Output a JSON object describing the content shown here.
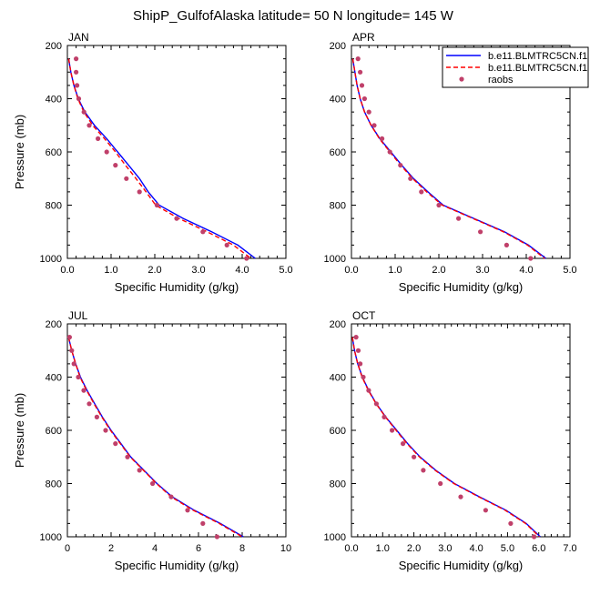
{
  "title": "ShipP_GulfofAlaska  latitude= 50 N longitude= 145 W",
  "legend": {
    "placement": "top-right",
    "entries": [
      {
        "label": "b.e11.BLMTRC5CN.f1",
        "color": "#0000ff",
        "style": "solid"
      },
      {
        "label": "b.e11.BLMTRC5CN.f1",
        "color": "#ff0000",
        "style": "dashed"
      },
      {
        "label": "raobs",
        "color": "#c0406a",
        "style": "marker"
      }
    ]
  },
  "colors": {
    "model_a": "#0000ff",
    "model_b": "#ff0000",
    "raobs": "#c0406a"
  },
  "chart_data": [
    {
      "type": "line",
      "panel": "JAN",
      "xlabel": "Specific Humidity (g/kg)",
      "ylabel": "Pressure (mb)",
      "xlim": [
        0,
        5
      ],
      "ylim": [
        200,
        1000
      ],
      "y_reversed": true,
      "xticks": [
        "0.0",
        "1.0",
        "2.0",
        "3.0",
        "4.0",
        "5.0"
      ],
      "yticks": [
        "200",
        "400",
        "600",
        "800",
        "1000"
      ],
      "series": [
        {
          "name": "b.e11.BLMTRC5CN.f1",
          "style": "solid",
          "points": [
            [
              0.03,
              250
            ],
            [
              0.08,
              300
            ],
            [
              0.15,
              350
            ],
            [
              0.25,
              400
            ],
            [
              0.4,
              450
            ],
            [
              0.62,
              500
            ],
            [
              0.9,
              550
            ],
            [
              1.15,
              600
            ],
            [
              1.4,
              650
            ],
            [
              1.65,
              700
            ],
            [
              1.85,
              750
            ],
            [
              2.1,
              800
            ],
            [
              2.65,
              850
            ],
            [
              3.3,
              900
            ],
            [
              3.9,
              950
            ],
            [
              4.3,
              1000
            ]
          ]
        },
        {
          "name": "b.e11.BLMTRC5CN.f1",
          "style": "dashed",
          "points": [
            [
              0.03,
              250
            ],
            [
              0.08,
              300
            ],
            [
              0.15,
              350
            ],
            [
              0.24,
              400
            ],
            [
              0.38,
              450
            ],
            [
              0.58,
              500
            ],
            [
              0.85,
              550
            ],
            [
              1.1,
              600
            ],
            [
              1.33,
              650
            ],
            [
              1.57,
              700
            ],
            [
              1.8,
              750
            ],
            [
              2.02,
              800
            ],
            [
              2.55,
              850
            ],
            [
              3.2,
              900
            ],
            [
              3.8,
              950
            ],
            [
              4.2,
              1000
            ]
          ]
        }
      ],
      "raobs": [
        [
          0.2,
          250
        ],
        [
          0.2,
          300
        ],
        [
          0.22,
          350
        ],
        [
          0.26,
          400
        ],
        [
          0.38,
          450
        ],
        [
          0.5,
          500
        ],
        [
          0.7,
          550
        ],
        [
          0.9,
          600
        ],
        [
          1.1,
          650
        ],
        [
          1.35,
          700
        ],
        [
          1.65,
          750
        ],
        [
          2.05,
          800
        ],
        [
          2.5,
          850
        ],
        [
          3.1,
          900
        ],
        [
          3.65,
          950
        ],
        [
          4.1,
          1000
        ]
      ]
    },
    {
      "type": "line",
      "panel": "APR",
      "xlabel": "Specific Humidity (g/kg)",
      "ylabel": "",
      "xlim": [
        0,
        5
      ],
      "ylim": [
        200,
        1000
      ],
      "y_reversed": true,
      "xticks": [
        "0.0",
        "1.0",
        "2.0",
        "3.0",
        "4.0",
        "5.0"
      ],
      "yticks": [
        "200",
        "400",
        "600",
        "800",
        "1000"
      ],
      "series": [
        {
          "name": "b.e11.BLMTRC5CN.f1",
          "style": "solid",
          "points": [
            [
              0.03,
              250
            ],
            [
              0.08,
              300
            ],
            [
              0.13,
              350
            ],
            [
              0.2,
              400
            ],
            [
              0.3,
              450
            ],
            [
              0.45,
              500
            ],
            [
              0.65,
              550
            ],
            [
              0.9,
              600
            ],
            [
              1.15,
              650
            ],
            [
              1.42,
              700
            ],
            [
              1.75,
              750
            ],
            [
              2.1,
              800
            ],
            [
              2.8,
              850
            ],
            [
              3.5,
              900
            ],
            [
              4.05,
              950
            ],
            [
              4.45,
              1000
            ]
          ]
        },
        {
          "name": "b.e11.BLMTRC5CN.f1",
          "style": "dashed",
          "points": [
            [
              0.03,
              250
            ],
            [
              0.08,
              300
            ],
            [
              0.13,
              350
            ],
            [
              0.2,
              400
            ],
            [
              0.3,
              450
            ],
            [
              0.45,
              500
            ],
            [
              0.64,
              550
            ],
            [
              0.88,
              600
            ],
            [
              1.13,
              650
            ],
            [
              1.4,
              700
            ],
            [
              1.72,
              750
            ],
            [
              2.08,
              800
            ],
            [
              2.78,
              850
            ],
            [
              3.48,
              900
            ],
            [
              4.03,
              950
            ],
            [
              4.42,
              1000
            ]
          ]
        }
      ],
      "raobs": [
        [
          0.15,
          250
        ],
        [
          0.2,
          300
        ],
        [
          0.24,
          350
        ],
        [
          0.3,
          400
        ],
        [
          0.4,
          450
        ],
        [
          0.52,
          500
        ],
        [
          0.7,
          550
        ],
        [
          0.88,
          600
        ],
        [
          1.12,
          650
        ],
        [
          1.35,
          700
        ],
        [
          1.6,
          750
        ],
        [
          2.0,
          800
        ],
        [
          2.45,
          850
        ],
        [
          2.95,
          900
        ],
        [
          3.55,
          950
        ],
        [
          4.1,
          1000
        ]
      ]
    },
    {
      "type": "line",
      "panel": "JUL",
      "xlabel": "Specific Humidity (g/kg)",
      "ylabel": "Pressure (mb)",
      "xlim": [
        0,
        10
      ],
      "ylim": [
        200,
        1000
      ],
      "y_reversed": true,
      "xticks": [
        "0",
        "2",
        "4",
        "6",
        "8",
        "10"
      ],
      "yticks": [
        "200",
        "400",
        "600",
        "800",
        "1000"
      ],
      "series": [
        {
          "name": "b.e11.BLMTRC5CN.f1",
          "style": "solid",
          "points": [
            [
              0.05,
              250
            ],
            [
              0.2,
              300
            ],
            [
              0.38,
              350
            ],
            [
              0.6,
              400
            ],
            [
              0.9,
              450
            ],
            [
              1.25,
              500
            ],
            [
              1.6,
              550
            ],
            [
              2.0,
              600
            ],
            [
              2.45,
              650
            ],
            [
              2.9,
              700
            ],
            [
              3.5,
              750
            ],
            [
              4.1,
              800
            ],
            [
              4.8,
              850
            ],
            [
              5.8,
              900
            ],
            [
              7.0,
              950
            ],
            [
              8.05,
              1000
            ]
          ]
        },
        {
          "name": "b.e11.BLMTRC5CN.f1",
          "style": "dashed",
          "points": [
            [
              0.05,
              250
            ],
            [
              0.2,
              300
            ],
            [
              0.38,
              350
            ],
            [
              0.58,
              400
            ],
            [
              0.88,
              450
            ],
            [
              1.22,
              500
            ],
            [
              1.58,
              550
            ],
            [
              1.97,
              600
            ],
            [
              2.42,
              650
            ],
            [
              2.88,
              700
            ],
            [
              3.48,
              750
            ],
            [
              4.08,
              800
            ],
            [
              4.75,
              850
            ],
            [
              5.75,
              900
            ],
            [
              6.95,
              950
            ],
            [
              8.0,
              1000
            ]
          ]
        }
      ],
      "raobs": [
        [
          0.1,
          250
        ],
        [
          0.2,
          300
        ],
        [
          0.3,
          350
        ],
        [
          0.5,
          400
        ],
        [
          0.75,
          450
        ],
        [
          1.0,
          500
        ],
        [
          1.35,
          550
        ],
        [
          1.75,
          600
        ],
        [
          2.2,
          650
        ],
        [
          2.75,
          700
        ],
        [
          3.3,
          750
        ],
        [
          3.9,
          800
        ],
        [
          4.75,
          850
        ],
        [
          5.5,
          900
        ],
        [
          6.2,
          950
        ],
        [
          6.85,
          1000
        ]
      ]
    },
    {
      "type": "line",
      "panel": "OCT",
      "xlabel": "Specific Humidity (g/kg)",
      "ylabel": "",
      "xlim": [
        0,
        7
      ],
      "ylim": [
        200,
        1000
      ],
      "y_reversed": true,
      "xticks": [
        "0.0",
        "1.0",
        "2.0",
        "3.0",
        "4.0",
        "5.0",
        "6.0",
        "7.0"
      ],
      "yticks": [
        "200",
        "400",
        "600",
        "800",
        "1000"
      ],
      "series": [
        {
          "name": "b.e11.BLMTRC5CN.f1",
          "style": "solid",
          "points": [
            [
              0.03,
              250
            ],
            [
              0.1,
              300
            ],
            [
              0.2,
              350
            ],
            [
              0.35,
              400
            ],
            [
              0.55,
              450
            ],
            [
              0.8,
              500
            ],
            [
              1.1,
              550
            ],
            [
              1.45,
              600
            ],
            [
              1.8,
              650
            ],
            [
              2.2,
              700
            ],
            [
              2.7,
              750
            ],
            [
              3.3,
              800
            ],
            [
              4.1,
              850
            ],
            [
              4.95,
              900
            ],
            [
              5.6,
              950
            ],
            [
              6.05,
              1000
            ]
          ]
        },
        {
          "name": "b.e11.BLMTRC5CN.f1",
          "style": "dashed",
          "points": [
            [
              0.03,
              250
            ],
            [
              0.1,
              300
            ],
            [
              0.2,
              350
            ],
            [
              0.34,
              400
            ],
            [
              0.54,
              450
            ],
            [
              0.79,
              500
            ],
            [
              1.09,
              550
            ],
            [
              1.43,
              600
            ],
            [
              1.78,
              650
            ],
            [
              2.18,
              700
            ],
            [
              2.68,
              750
            ],
            [
              3.28,
              800
            ],
            [
              4.08,
              850
            ],
            [
              4.92,
              900
            ],
            [
              5.58,
              950
            ],
            [
              6.02,
              1000
            ]
          ]
        }
      ],
      "raobs": [
        [
          0.15,
          250
        ],
        [
          0.22,
          300
        ],
        [
          0.28,
          350
        ],
        [
          0.38,
          400
        ],
        [
          0.55,
          450
        ],
        [
          0.8,
          500
        ],
        [
          1.05,
          550
        ],
        [
          1.3,
          600
        ],
        [
          1.65,
          650
        ],
        [
          2.0,
          700
        ],
        [
          2.3,
          750
        ],
        [
          2.85,
          800
        ],
        [
          3.5,
          850
        ],
        [
          4.3,
          900
        ],
        [
          5.1,
          950
        ],
        [
          5.85,
          1000
        ]
      ]
    }
  ]
}
